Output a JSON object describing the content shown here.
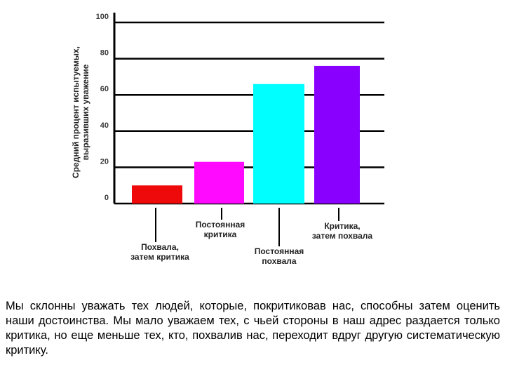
{
  "chart_data": {
    "type": "bar",
    "ylabel": [
      "Средний процент испытуемых,",
      "выразивших уважение"
    ],
    "ylim": [
      0,
      100
    ],
    "yticks": [
      0,
      20,
      40,
      60,
      80,
      100
    ],
    "grid": true,
    "categories": [
      [
        "Похвала,",
        "затем критика"
      ],
      [
        "Постоянная",
        "критика"
      ],
      [
        "Постоянная",
        "похвала"
      ],
      [
        "Критика,",
        "затем похвала"
      ]
    ],
    "values": [
      10,
      23,
      66,
      76
    ],
    "colors": [
      "#ee0a0a",
      "#ff0aff",
      "#00ffff",
      "#8a00ff"
    ]
  },
  "caption": "Мы склонны уважать тех людей, которые, покритиковав нас, способны затем оценить наши достоинства. Мы мало уважаем тех, с чьей стороны в наш адрес раздается только критика, но еще меньше тех, кто, похвалив нас, переходит вдруг другую систематическую критику."
}
